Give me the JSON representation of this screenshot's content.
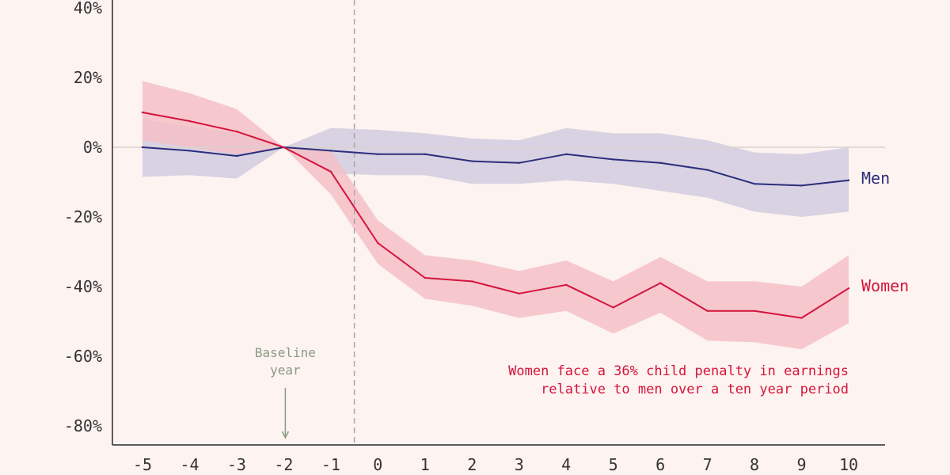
{
  "chart_data": {
    "type": "line",
    "x": [
      -5,
      -4,
      -3,
      -2,
      -1,
      0,
      1,
      2,
      3,
      4,
      5,
      6,
      7,
      8,
      9,
      10
    ],
    "ylim": [
      -0.8,
      0.4
    ],
    "xlim": [
      -5,
      10
    ],
    "y_ticks": [
      "40%",
      "20%",
      "0%",
      "-20%",
      "-40%",
      "-60%",
      "-80%"
    ],
    "y_tick_values": [
      0.4,
      0.2,
      0,
      -0.2,
      -0.4,
      -0.6,
      -0.8
    ],
    "x_ticks": [
      "-5",
      "-4",
      "-3",
      "-2",
      "-1",
      "0",
      "1",
      "2",
      "3",
      "4",
      "5",
      "6",
      "7",
      "8",
      "9",
      "10"
    ],
    "grid": false,
    "event_line_x": -0.5,
    "series": [
      {
        "name": "Men",
        "color": "#2b2d7c",
        "band_color": "#d6d0e0",
        "values": [
          0.0,
          -0.01,
          -0.025,
          0.0,
          -0.01,
          -0.02,
          -0.02,
          -0.04,
          -0.045,
          -0.02,
          -0.035,
          -0.045,
          -0.065,
          -0.105,
          -0.11,
          -0.095
        ],
        "upper": [
          0.08,
          0.06,
          0.04,
          0.0,
          0.055,
          0.05,
          0.04,
          0.025,
          0.02,
          0.055,
          0.04,
          0.04,
          0.02,
          -0.015,
          -0.02,
          0.0
        ],
        "lower": [
          -0.085,
          -0.08,
          -0.09,
          0.0,
          -0.075,
          -0.08,
          -0.08,
          -0.105,
          -0.105,
          -0.095,
          -0.105,
          -0.125,
          -0.145,
          -0.185,
          -0.2,
          -0.185
        ]
      },
      {
        "name": "Women",
        "color": "#d4143c",
        "band_color": "#f4c0c7",
        "values": [
          0.1,
          0.075,
          0.045,
          0.0,
          -0.07,
          -0.275,
          -0.375,
          -0.385,
          -0.42,
          -0.395,
          -0.46,
          -0.39,
          -0.47,
          -0.47,
          -0.49,
          -0.405
        ],
        "upper": [
          0.19,
          0.155,
          0.11,
          0.0,
          -0.01,
          -0.21,
          -0.31,
          -0.325,
          -0.355,
          -0.325,
          -0.385,
          -0.315,
          -0.385,
          -0.385,
          -0.4,
          -0.31
        ],
        "lower": [
          0.02,
          0.0,
          -0.02,
          0.0,
          -0.135,
          -0.335,
          -0.435,
          -0.455,
          -0.49,
          -0.47,
          -0.535,
          -0.475,
          -0.555,
          -0.56,
          -0.58,
          -0.505
        ]
      }
    ],
    "annotation": {
      "lines": [
        "Women face a 36% child penalty in earnings",
        "relative to men over a ten year period"
      ],
      "color": "#d4143c"
    },
    "baseline": {
      "lines": [
        "Baseline",
        "year"
      ],
      "x": -2,
      "color": "#8a9a84"
    }
  }
}
